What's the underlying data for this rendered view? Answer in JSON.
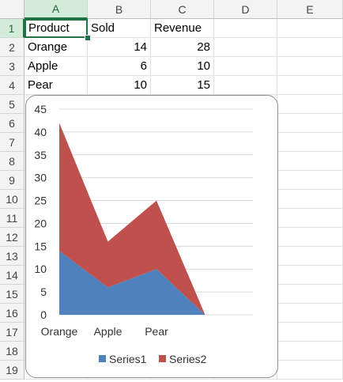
{
  "sheet": {
    "columns": [
      "A",
      "B",
      "C",
      "D",
      "E"
    ],
    "rows": [
      "1",
      "2",
      "3",
      "4",
      "5",
      "6",
      "7",
      "8",
      "9",
      "10",
      "11",
      "12",
      "13",
      "14",
      "15",
      "16",
      "17",
      "18",
      "19"
    ],
    "cells": [
      [
        "Product",
        "Sold",
        "Revenue"
      ],
      [
        "Orange",
        "14",
        "28"
      ],
      [
        "Apple",
        "6",
        "10"
      ],
      [
        "Pear",
        "10",
        "15"
      ]
    ],
    "active_cell": "A1",
    "colors": {
      "selection": "#217346",
      "header_bg": "#f3f3f3",
      "header_selected_bg": "#d3ecd9"
    }
  },
  "chart_data": {
    "type": "area",
    "stacked": true,
    "categories": [
      "Orange",
      "Apple",
      "Pear",
      ""
    ],
    "series": [
      {
        "name": "Series1",
        "values": [
          14,
          6,
          10,
          0
        ],
        "color": "#4f81bd"
      },
      {
        "name": "Series2",
        "values": [
          28,
          10,
          15,
          0
        ],
        "color": "#c0504d"
      }
    ],
    "ylim": [
      0,
      45
    ],
    "yticks": [
      "0",
      "5",
      "10",
      "15",
      "20",
      "25",
      "30",
      "35",
      "40",
      "45"
    ],
    "grid": true,
    "legend": "bottom"
  }
}
